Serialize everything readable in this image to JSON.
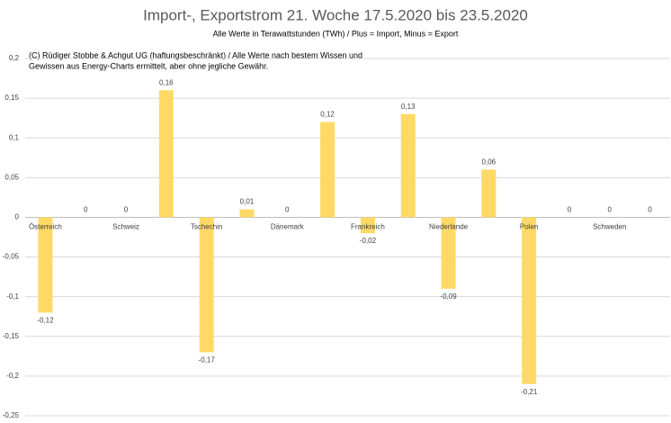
{
  "chart_data": {
    "type": "bar",
    "title": "Import-, Exportstrom 21. Woche 17.5.2020 bis 23.5.2020",
    "subtitle": "Alle Werte in Terawattstunden (TWh) / Plus = Import, Minus = Export",
    "annotation": [
      "(C) Rüdiger Stobbe & Achgut UG (haftungsbeschränkt) / Alle Werte nach bestem Wissen und",
      "Gewissen aus Energy-Charts ermittelt, aber ohne jegliche Gewähr."
    ],
    "categories": [
      "Österreich",
      null,
      "Schweiz",
      null,
      "Tschechin",
      null,
      "Dänemark",
      null,
      "Frankreich",
      null,
      "Niederlande",
      null,
      "Polen",
      null,
      "Schweden",
      null
    ],
    "values": [
      -0.12,
      0,
      0,
      0.16,
      -0.17,
      0.01,
      0,
      0.12,
      -0.02,
      0.13,
      -0.09,
      0.06,
      -0.21,
      0,
      0,
      0
    ],
    "value_labels": [
      "-0,12",
      "0",
      "0",
      "0,16",
      "-0,17",
      "0,01",
      "0",
      "0,12",
      "-0,02",
      "0,13",
      "-0,09",
      "0,06",
      "-0,21",
      "0",
      "0",
      "0"
    ],
    "color": "#ffd966",
    "ylim": [
      -0.25,
      0.2
    ],
    "yticks": [
      {
        "value": -0.25,
        "label": "-0,25"
      },
      {
        "value": -0.2,
        "label": "-0,2"
      },
      {
        "value": -0.15,
        "label": "-0,15"
      },
      {
        "value": -0.1,
        "label": "-0,1"
      },
      {
        "value": -0.05,
        "label": "-0,05"
      },
      0,
      {
        "value": 0.05,
        "label": "0,05"
      },
      {
        "value": 0.1,
        "label": "0,1"
      },
      {
        "value": 0.15,
        "label": "0,15"
      },
      {
        "value": 0.2,
        "label": "0,2"
      }
    ],
    "grid": true
  }
}
